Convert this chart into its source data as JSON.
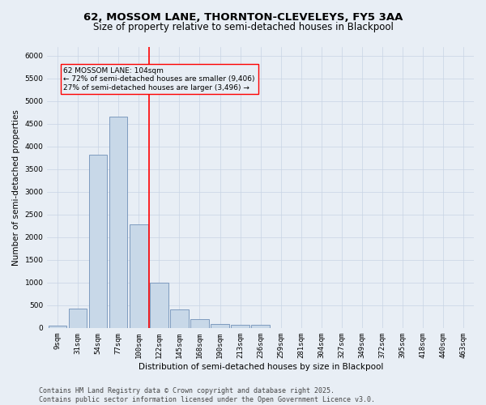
{
  "title_line1": "62, MOSSOM LANE, THORNTON-CLEVELEYS, FY5 3AA",
  "title_line2": "Size of property relative to semi-detached houses in Blackpool",
  "xlabel": "Distribution of semi-detached houses by size in Blackpool",
  "ylabel": "Number of semi-detached properties",
  "categories": [
    "9sqm",
    "31sqm",
    "54sqm",
    "77sqm",
    "100sqm",
    "122sqm",
    "145sqm",
    "168sqm",
    "190sqm",
    "213sqm",
    "236sqm",
    "259sqm",
    "281sqm",
    "304sqm",
    "327sqm",
    "349sqm",
    "372sqm",
    "395sqm",
    "418sqm",
    "440sqm",
    "463sqm"
  ],
  "values": [
    50,
    430,
    3820,
    4660,
    2290,
    990,
    400,
    200,
    90,
    75,
    60,
    0,
    0,
    0,
    0,
    0,
    0,
    0,
    0,
    0,
    0
  ],
  "bar_color": "#c8d8e8",
  "bar_edge_color": "#7090b8",
  "grid_color": "#c8d4e4",
  "background_color": "#e8eef5",
  "vline_color": "red",
  "annotation_text": "62 MOSSOM LANE: 104sqm\n← 72% of semi-detached houses are smaller (9,406)\n27% of semi-detached houses are larger (3,496) →",
  "ylim": [
    0,
    6200
  ],
  "yticks": [
    0,
    500,
    1000,
    1500,
    2000,
    2500,
    3000,
    3500,
    4000,
    4500,
    5000,
    5500,
    6000
  ],
  "footer_text": "Contains HM Land Registry data © Crown copyright and database right 2025.\nContains public sector information licensed under the Open Government Licence v3.0.",
  "title_fontsize": 9.5,
  "subtitle_fontsize": 8.5,
  "label_fontsize": 7.5,
  "tick_fontsize": 6.5,
  "annot_fontsize": 6.5,
  "footer_fontsize": 6.0
}
